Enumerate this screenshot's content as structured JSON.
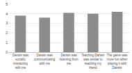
{
  "chart_data": {
    "type": "bar",
    "categories": [
      "Darwin was socially interacting with me",
      "Darwin was communicating with me",
      "Darwin was listening from me",
      "Teaching Darwin was similar to teaching my friend",
      "The game was more fun when playing it with Darwin"
    ],
    "values": [
      3.8,
      3.6,
      4.1,
      4.0,
      4.2
    ],
    "color": "#8c8c8c",
    "ylim": [
      0,
      5
    ],
    "yticks": [
      0,
      1,
      2,
      3,
      4,
      5
    ],
    "grid": true
  }
}
